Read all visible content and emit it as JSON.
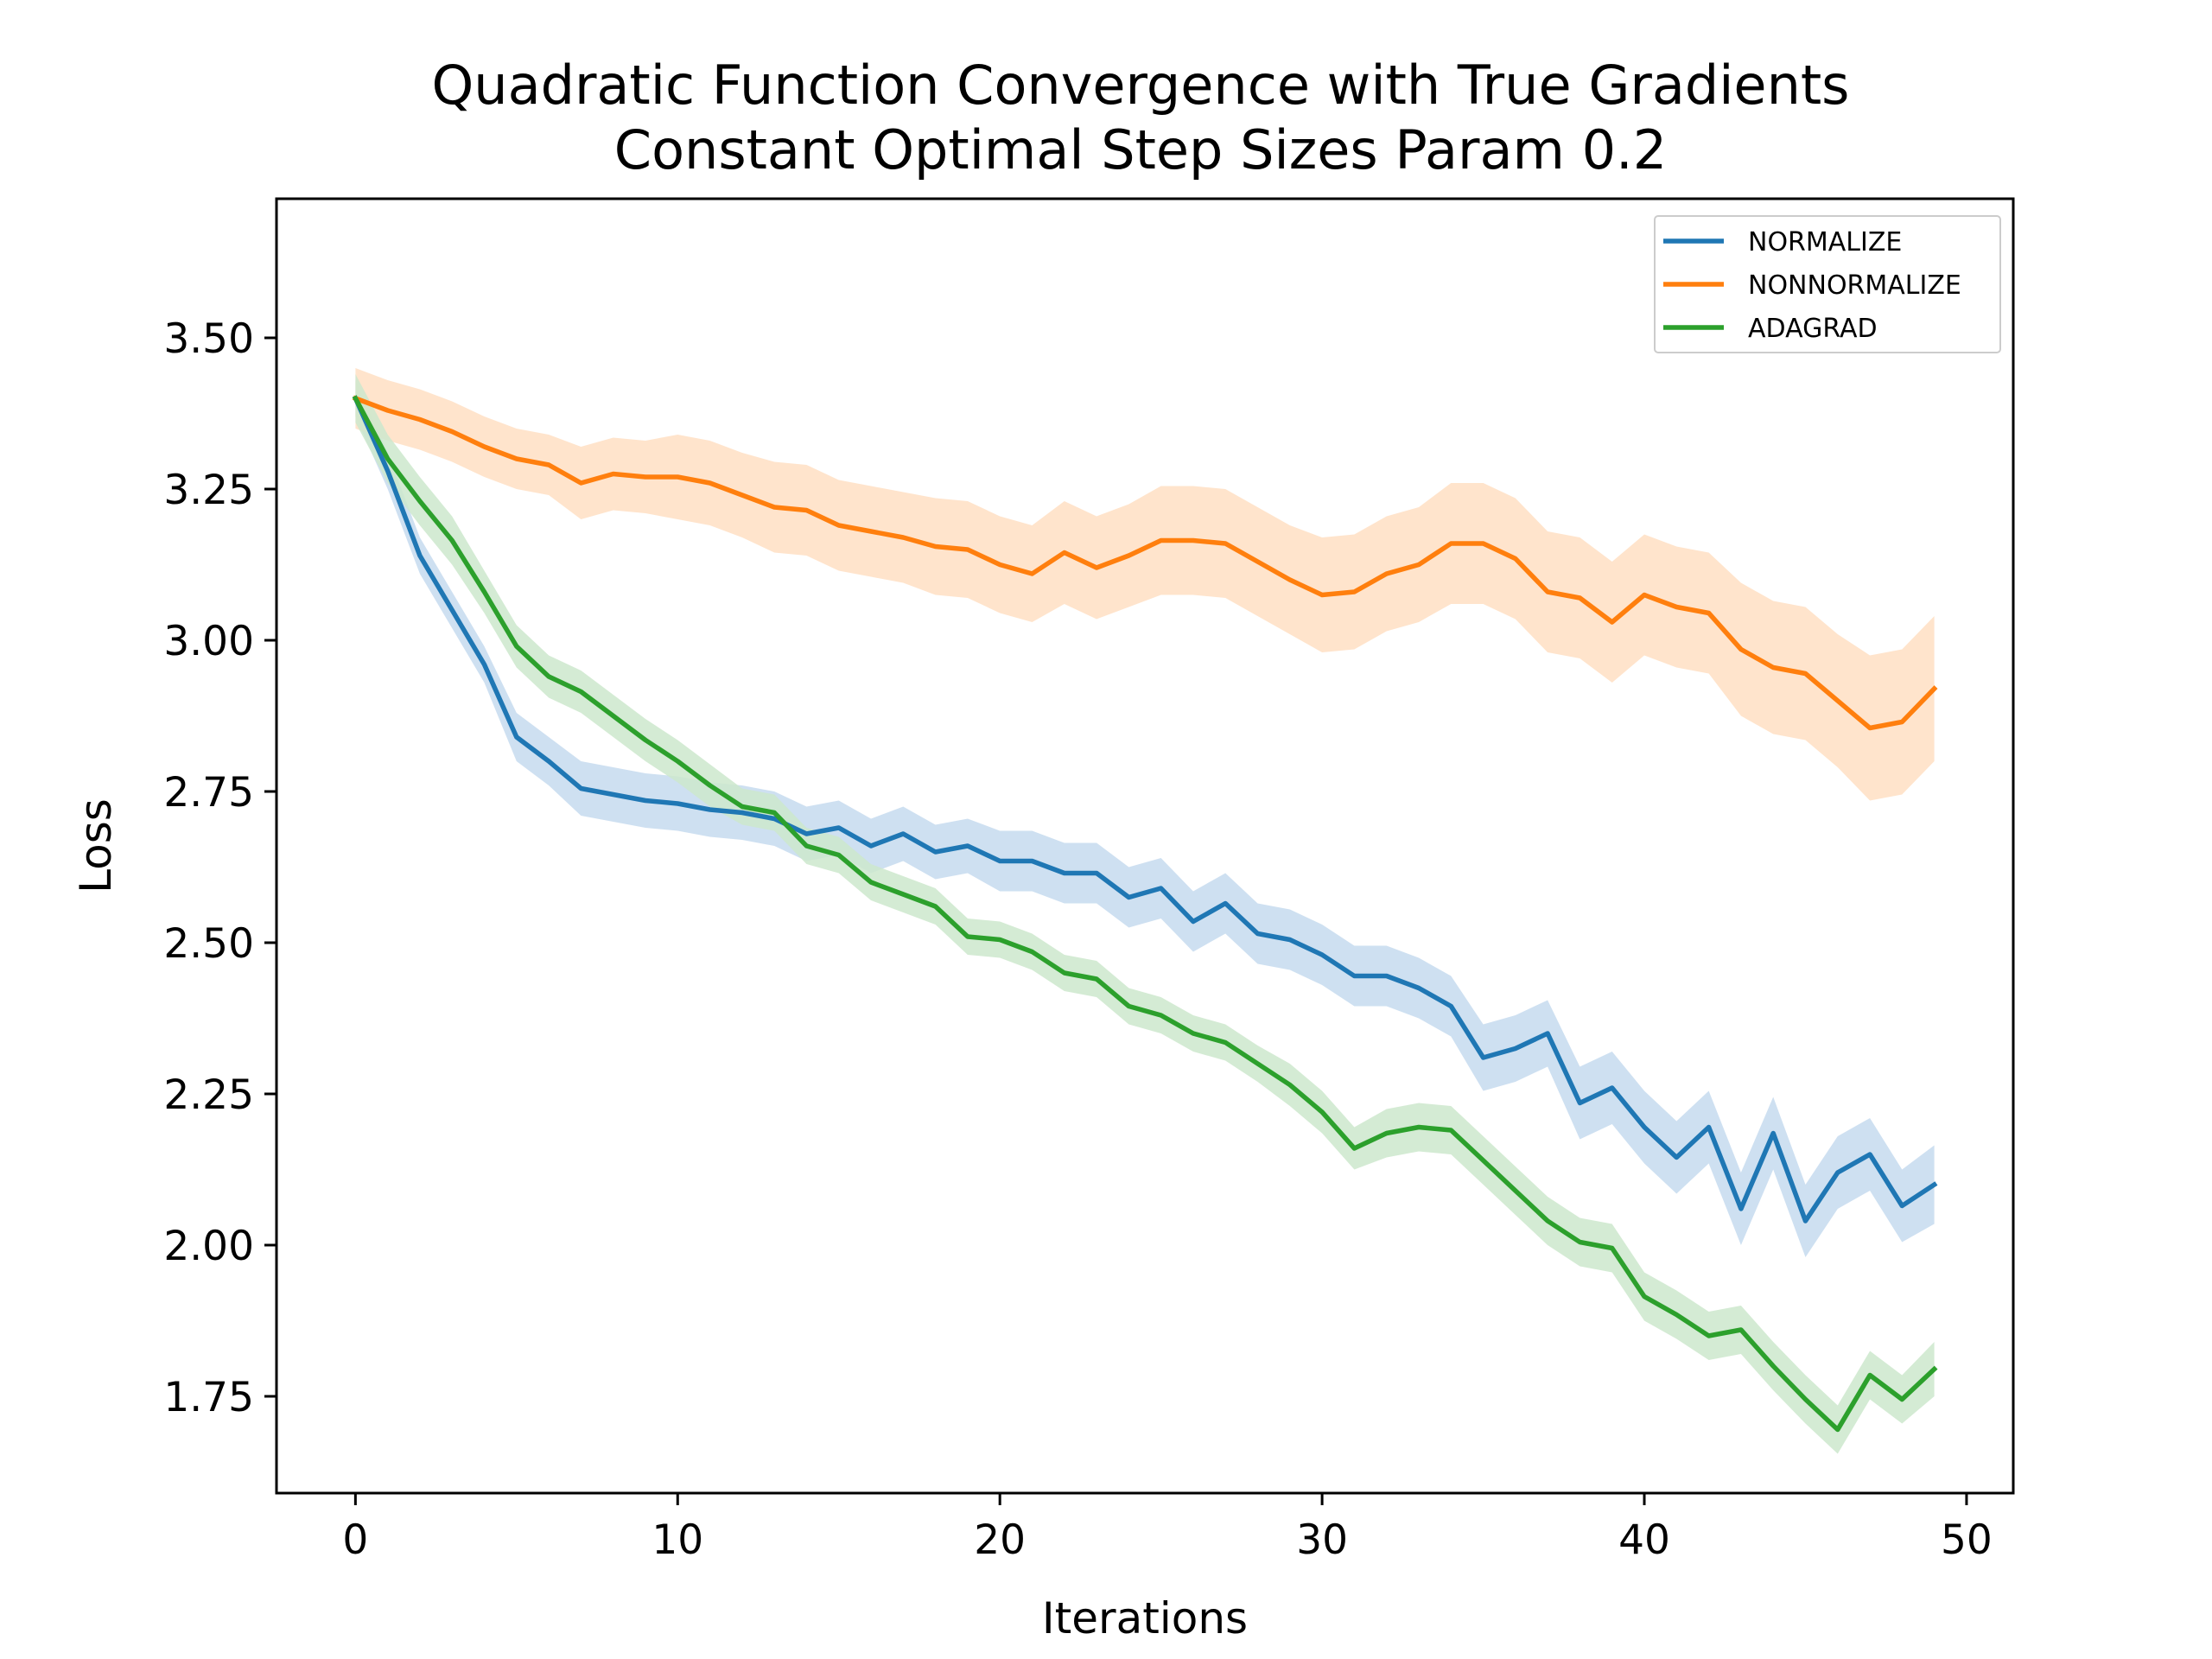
{
  "chart_data": {
    "type": "line",
    "title": "Quadratic Function Convergence with True Gradients",
    "subtitle": "Constant Optimal Step Sizes Param 0.2",
    "xlabel": "Iterations",
    "ylabel": "Loss",
    "xlim": [
      -2.45,
      51.45
    ],
    "ylim": [
      1.59,
      3.73
    ],
    "xticks": [
      0,
      10,
      20,
      30,
      40,
      50
    ],
    "xtick_labels": [
      "0",
      "10",
      "20",
      "30",
      "40",
      "50"
    ],
    "yticks": [
      1.75,
      2.0,
      2.25,
      2.5,
      2.75,
      3.0,
      3.25,
      3.5
    ],
    "ytick_labels": [
      "1.75",
      "2.00",
      "2.25",
      "2.50",
      "2.75",
      "3.00",
      "3.25",
      "3.50"
    ],
    "grid": false,
    "legend_position": "top-right",
    "x": [
      0,
      1,
      2,
      3,
      4,
      5,
      6,
      7,
      8,
      9,
      10,
      11,
      12,
      13,
      14,
      15,
      16,
      17,
      18,
      19,
      20,
      21,
      22,
      23,
      24,
      25,
      26,
      27,
      28,
      29,
      30,
      31,
      32,
      33,
      34,
      35,
      36,
      37,
      38,
      39,
      40,
      41,
      42,
      43,
      44,
      45,
      46,
      47,
      48,
      49
    ],
    "series": [
      {
        "name": "NORMALIZE",
        "color": "#1f77b4",
        "band_color": "#c6dbef",
        "values": [
          3.4,
          3.28,
          3.14,
          3.05,
          2.96,
          2.84,
          2.8,
          2.755,
          2.745,
          2.735,
          2.73,
          2.72,
          2.715,
          2.705,
          2.68,
          2.69,
          2.66,
          2.68,
          2.65,
          2.66,
          2.635,
          2.635,
          2.615,
          2.615,
          2.575,
          2.59,
          2.535,
          2.565,
          2.515,
          2.505,
          2.48,
          2.445,
          2.445,
          2.425,
          2.395,
          2.31,
          2.325,
          2.35,
          2.235,
          2.26,
          2.195,
          2.145,
          2.195,
          2.06,
          2.185,
          2.04,
          2.12,
          2.15,
          2.065,
          2.1
        ],
        "band": [
          0.03,
          0.03,
          0.03,
          0.03,
          0.03,
          0.04,
          0.04,
          0.045,
          0.045,
          0.045,
          0.045,
          0.045,
          0.045,
          0.045,
          0.045,
          0.045,
          0.045,
          0.045,
          0.045,
          0.045,
          0.05,
          0.05,
          0.05,
          0.05,
          0.05,
          0.05,
          0.05,
          0.05,
          0.05,
          0.05,
          0.05,
          0.05,
          0.05,
          0.05,
          0.05,
          0.055,
          0.055,
          0.055,
          0.06,
          0.06,
          0.06,
          0.06,
          0.06,
          0.06,
          0.06,
          0.06,
          0.06,
          0.06,
          0.06,
          0.065
        ]
      },
      {
        "name": "NONNORMALIZE",
        "color": "#ff7f0e",
        "band_color": "#ffdfc3",
        "values": [
          3.4,
          3.38,
          3.365,
          3.345,
          3.32,
          3.3,
          3.29,
          3.26,
          3.275,
          3.27,
          3.27,
          3.26,
          3.24,
          3.22,
          3.215,
          3.19,
          3.18,
          3.17,
          3.155,
          3.15,
          3.125,
          3.11,
          3.145,
          3.12,
          3.14,
          3.165,
          3.165,
          3.16,
          3.13,
          3.1,
          3.075,
          3.08,
          3.11,
          3.125,
          3.16,
          3.16,
          3.135,
          3.08,
          3.07,
          3.03,
          3.075,
          3.055,
          3.045,
          2.985,
          2.955,
          2.945,
          2.9,
          2.855,
          2.865,
          2.92
        ],
        "band": [
          0.05,
          0.05,
          0.05,
          0.05,
          0.05,
          0.05,
          0.05,
          0.06,
          0.06,
          0.06,
          0.07,
          0.07,
          0.07,
          0.075,
          0.075,
          0.075,
          0.075,
          0.075,
          0.08,
          0.08,
          0.08,
          0.08,
          0.085,
          0.085,
          0.085,
          0.09,
          0.09,
          0.09,
          0.09,
          0.09,
          0.095,
          0.095,
          0.095,
          0.095,
          0.1,
          0.1,
          0.1,
          0.1,
          0.1,
          0.1,
          0.1,
          0.1,
          0.1,
          0.11,
          0.11,
          0.11,
          0.11,
          0.12,
          0.12,
          0.12
        ]
      },
      {
        "name": "ADAGRAD",
        "color": "#2ca02c",
        "band_color": "#cce8cc",
        "values": [
          3.4,
          3.3,
          3.23,
          3.165,
          3.08,
          2.99,
          2.94,
          2.915,
          2.875,
          2.835,
          2.8,
          2.76,
          2.725,
          2.715,
          2.66,
          2.645,
          2.6,
          2.58,
          2.56,
          2.51,
          2.505,
          2.485,
          2.45,
          2.44,
          2.395,
          2.38,
          2.35,
          2.335,
          2.3,
          2.265,
          2.22,
          2.16,
          2.185,
          2.195,
          2.19,
          2.14,
          2.09,
          2.04,
          2.005,
          1.995,
          1.915,
          1.885,
          1.85,
          1.86,
          1.8,
          1.745,
          1.695,
          1.785,
          1.745,
          1.795
        ],
        "band": [
          0.04,
          0.04,
          0.04,
          0.04,
          0.035,
          0.035,
          0.035,
          0.035,
          0.035,
          0.035,
          0.035,
          0.035,
          0.03,
          0.03,
          0.03,
          0.03,
          0.03,
          0.03,
          0.03,
          0.03,
          0.03,
          0.03,
          0.03,
          0.03,
          0.03,
          0.03,
          0.03,
          0.03,
          0.03,
          0.035,
          0.035,
          0.035,
          0.04,
          0.04,
          0.04,
          0.04,
          0.04,
          0.04,
          0.04,
          0.04,
          0.04,
          0.04,
          0.04,
          0.04,
          0.04,
          0.04,
          0.04,
          0.04,
          0.04,
          0.045
        ]
      }
    ]
  }
}
